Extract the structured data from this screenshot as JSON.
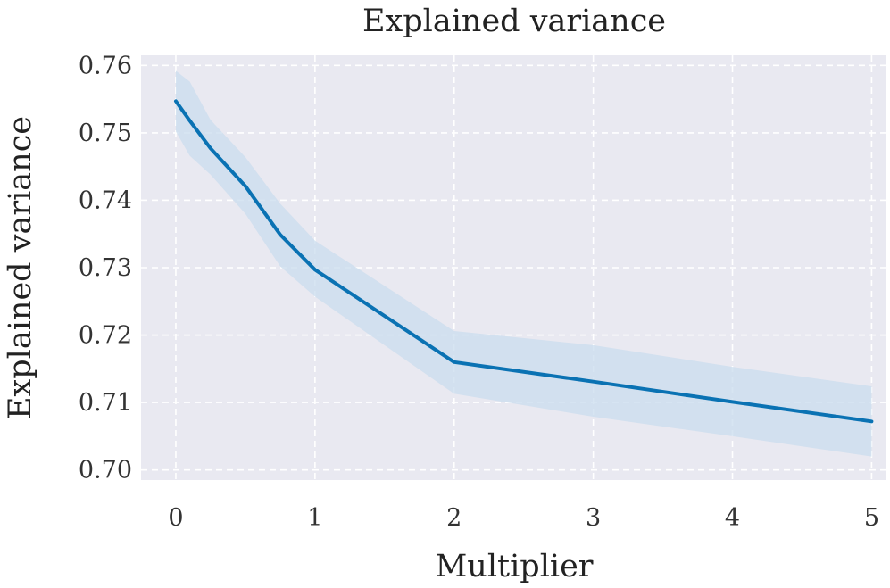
{
  "colors": {
    "plot_background": "#e9e9f1",
    "line": "#0a72b3",
    "band": "#c9dcee",
    "grid": "#ffffff",
    "text": "#222222"
  },
  "chart_data": {
    "type": "line",
    "title": "Explained variance",
    "xlabel": "Multiplier",
    "ylabel": "Explained variance",
    "xlim": [
      -0.25,
      5.1
    ],
    "ylim": [
      0.6985,
      0.7615
    ],
    "xticks": [
      0,
      1,
      2,
      3,
      4,
      5
    ],
    "xtick_labels": [
      "0",
      "1",
      "2",
      "3",
      "4",
      "5"
    ],
    "yticks": [
      0.7,
      0.71,
      0.72,
      0.73,
      0.74,
      0.75,
      0.76
    ],
    "ytick_labels": [
      "0.70",
      "0.71",
      "0.72",
      "0.73",
      "0.74",
      "0.75",
      "0.76"
    ],
    "grid": true,
    "grid_style": "dashed",
    "series": [
      {
        "x": [
          0,
          0.1,
          0.25,
          0.5,
          0.75,
          1,
          2,
          3,
          4,
          5
        ],
        "y": [
          0.7547,
          0.7518,
          0.7477,
          0.7421,
          0.7349,
          0.7297,
          0.716,
          0.7131,
          0.7101,
          0.7072
        ],
        "ci_lower": [
          0.7502,
          0.7466,
          0.7438,
          0.738,
          0.7302,
          0.7257,
          0.7113,
          0.7079,
          0.705,
          0.702
        ],
        "ci_upper": [
          0.7592,
          0.7576,
          0.7519,
          0.7464,
          0.7395,
          0.734,
          0.7206,
          0.7185,
          0.7153,
          0.7124
        ]
      }
    ]
  }
}
